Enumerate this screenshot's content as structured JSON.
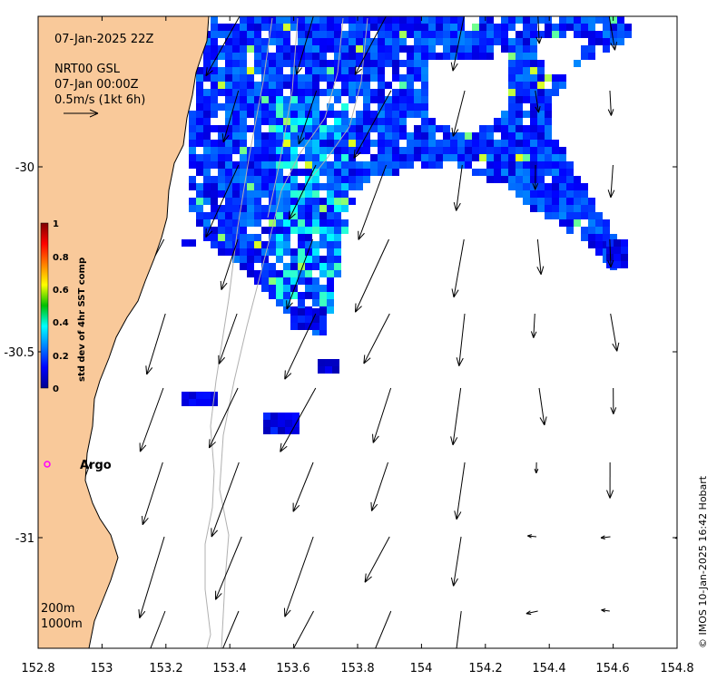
{
  "map": {
    "date_label": "07-Jan-2025 22Z",
    "current_product": "NRT00 GSL",
    "current_time": "07-Jan 00:00Z",
    "scale_label": "0.5m/s (1kt 6h)",
    "x_ticks": [
      "152.8",
      "153",
      "153.2",
      "153.4",
      "153.6",
      "153.8",
      "154",
      "154.2",
      "154.4",
      "154.6",
      "154.8"
    ],
    "y_ticks": [
      "-30",
      "-30.5",
      "-31"
    ],
    "lon_range": [
      152.8,
      154.8
    ],
    "lat_range": [
      -31.3,
      -29.6
    ],
    "colorbar": {
      "title": "std dev of 4hr SST comp",
      "ticks": [
        "1",
        "0.8",
        "0.6",
        "0.4",
        "0.2",
        "0"
      ],
      "range": [
        0,
        1
      ],
      "colormap": "jet"
    },
    "float": {
      "label": "Argo",
      "color": "#ff00ff"
    },
    "contours": [
      "200m",
      "1000m"
    ],
    "land_color": "#f9c99a",
    "credit": "© IMOS 10-Jan-2025 16:42 Hobart"
  }
}
